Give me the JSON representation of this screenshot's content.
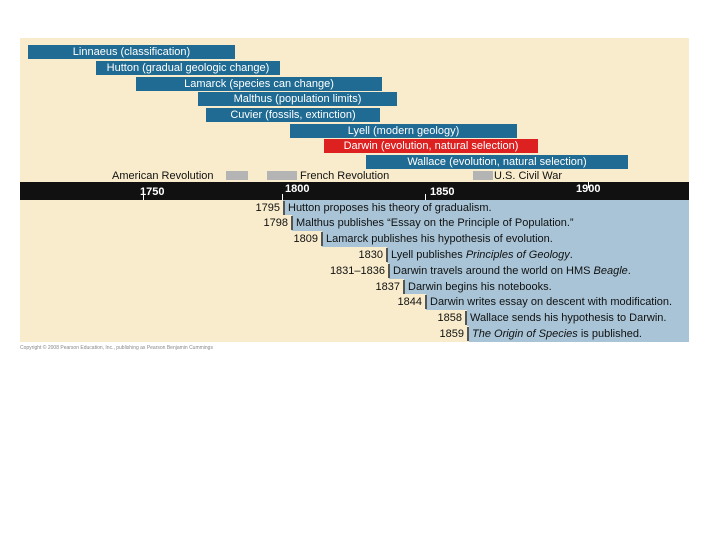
{
  "people": [
    {
      "label": "Linnaeus (classification)"
    },
    {
      "label": "Hutton (gradual geologic change)"
    },
    {
      "label": "Lamarck (species can change)"
    },
    {
      "label": "Malthus (population limits)"
    },
    {
      "label": "Cuvier (fossils, extinction)"
    },
    {
      "label": "Lyell (modern geology)"
    },
    {
      "label": "Darwin (evolution, natural selection)",
      "highlight": true
    },
    {
      "label": "Wallace (evolution, natural selection)"
    }
  ],
  "historical_events": [
    {
      "label": "American Revolution"
    },
    {
      "label": "French Revolution"
    },
    {
      "label": "U.S. Civil War"
    }
  ],
  "axis_years": [
    "1750",
    "1800",
    "1850",
    "1900"
  ],
  "events": [
    {
      "year": "1795",
      "text": "Hutton proposes his theory of gradualism."
    },
    {
      "year": "1798",
      "text": "Malthus publishes “Essay on the Principle of Population.”"
    },
    {
      "year": "1809",
      "text": "Lamarck publishes his hypothesis of evolution."
    },
    {
      "year": "1830",
      "text_before": "Lyell publishes ",
      "italic": "Principles of Geology",
      "text_after": "."
    },
    {
      "year": "1831–1836",
      "text_before": "Darwin travels around the world on HMS ",
      "italic": "Beagle",
      "text_after": "."
    },
    {
      "year": "1837",
      "text": "Darwin begins his notebooks."
    },
    {
      "year": "1844",
      "text": "Darwin writes essay on descent with modification."
    },
    {
      "year": "1858",
      "text": "Wallace sends his hypothesis to Darwin."
    },
    {
      "year": "1859",
      "text_before": "",
      "italic": "The Origin of Species",
      "text_after": " is published."
    }
  ],
  "colors": {
    "bar": "#1f6b93",
    "highlight": "#dd2020",
    "axis": "#111111",
    "step_fill": "#a8c4d6",
    "panel": "#f9eccc"
  },
  "copyright": "Copyright © 2008 Pearson Education, Inc., publishing as Pearson Benjamin Cummings"
}
